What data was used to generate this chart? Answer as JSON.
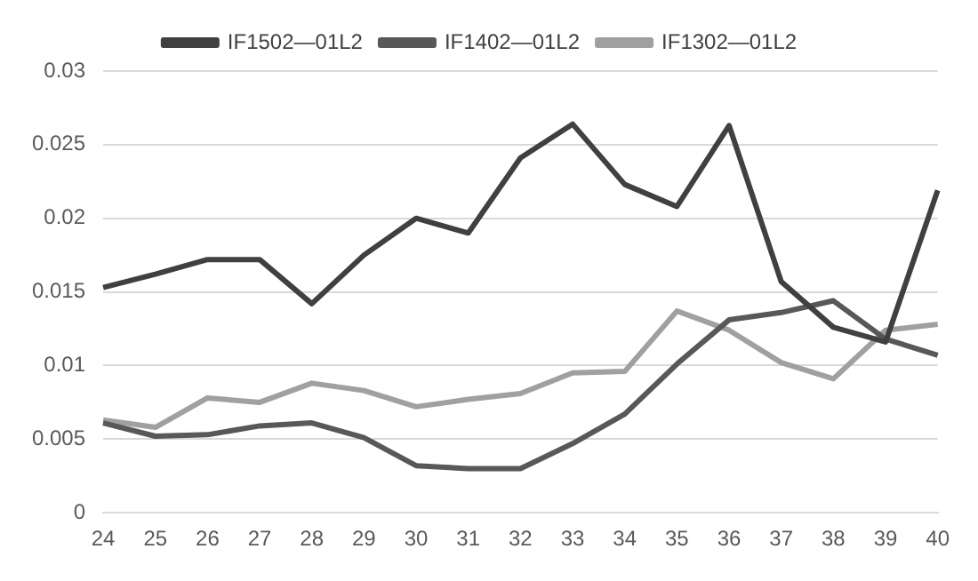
{
  "chart_data": {
    "type": "line",
    "categories": [
      "24",
      "25",
      "26",
      "27",
      "28",
      "29",
      "30",
      "31",
      "32",
      "33",
      "34",
      "35",
      "36",
      "37",
      "38",
      "39",
      "40"
    ],
    "series": [
      {
        "name": "IF1502—01L2",
        "color": "#404040",
        "values": [
          0.0153,
          0.0162,
          0.0172,
          0.0172,
          0.0142,
          0.0175,
          0.02,
          0.019,
          0.0241,
          0.0264,
          0.0223,
          0.0208,
          0.0263,
          0.0157,
          0.0126,
          0.0116,
          0.0219
        ]
      },
      {
        "name": "IF1402—01L2",
        "color": "#585858",
        "values": [
          0.0061,
          0.0052,
          0.0053,
          0.0059,
          0.0061,
          0.0051,
          0.0032,
          0.003,
          0.003,
          0.0047,
          0.0067,
          0.0101,
          0.0131,
          0.0136,
          0.0144,
          0.0118,
          0.0107
        ]
      },
      {
        "name": "IF1302—01L2",
        "color": "#a0a0a0",
        "values": [
          0.0063,
          0.0058,
          0.0078,
          0.0075,
          0.0088,
          0.0083,
          0.0072,
          0.0077,
          0.0081,
          0.0095,
          0.0096,
          0.0137,
          0.0124,
          0.0102,
          0.0091,
          0.0124,
          0.0128
        ]
      }
    ],
    "ylim": [
      0,
      0.03
    ],
    "yticks": [
      0,
      0.005,
      0.01,
      0.015,
      0.02,
      0.025,
      0.03
    ],
    "grid": "y",
    "legend": "top",
    "marker": "none",
    "line_style": "solid"
  }
}
